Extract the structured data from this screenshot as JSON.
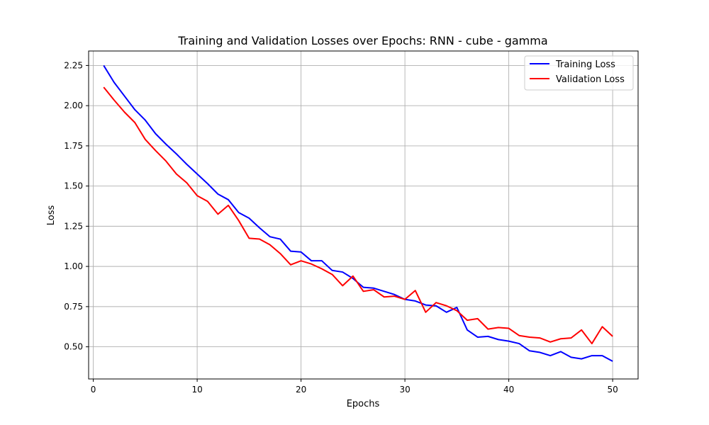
{
  "chart_data": {
    "type": "line",
    "title": "Training and Validation Losses over Epochs: RNN - cube - gamma",
    "xlabel": "Epochs",
    "ylabel": "Loss",
    "xlim": [
      -0.45,
      52.45
    ],
    "ylim": [
      0.3,
      2.34
    ],
    "xticks": [
      0,
      10,
      20,
      30,
      40,
      50
    ],
    "xtick_labels": [
      "0",
      "10",
      "20",
      "30",
      "40",
      "50"
    ],
    "yticks": [
      0.5,
      0.75,
      1.0,
      1.25,
      1.5,
      1.75,
      2.0,
      2.25
    ],
    "ytick_labels": [
      "0.50",
      "0.75",
      "1.00",
      "1.25",
      "1.50",
      "1.75",
      "2.00",
      "2.25"
    ],
    "grid": true,
    "legend_position": "top-right",
    "x": [
      1,
      2,
      3,
      4,
      5,
      6,
      7,
      8,
      9,
      10,
      11,
      12,
      13,
      14,
      15,
      16,
      17,
      18,
      19,
      20,
      21,
      22,
      23,
      24,
      25,
      26,
      27,
      28,
      29,
      30,
      31,
      32,
      33,
      34,
      35,
      36,
      37,
      38,
      39,
      40,
      41,
      42,
      43,
      44,
      45,
      46,
      47,
      48,
      49,
      50
    ],
    "series": [
      {
        "name": "Training Loss",
        "color": "#0000ff",
        "values": [
          2.25,
          2.145,
          2.06,
          1.975,
          1.91,
          1.825,
          1.76,
          1.7,
          1.635,
          1.575,
          1.515,
          1.45,
          1.415,
          1.335,
          1.3,
          1.24,
          1.185,
          1.17,
          1.095,
          1.09,
          1.035,
          1.035,
          0.975,
          0.965,
          0.925,
          0.87,
          0.865,
          0.845,
          0.825,
          0.795,
          0.785,
          0.76,
          0.755,
          0.715,
          0.745,
          0.605,
          0.56,
          0.565,
          0.545,
          0.535,
          0.52,
          0.475,
          0.465,
          0.445,
          0.47,
          0.435,
          0.425,
          0.445,
          0.445,
          0.41
        ]
      },
      {
        "name": "Validation Loss",
        "color": "#ff0000",
        "values": [
          2.115,
          2.035,
          1.96,
          1.895,
          1.79,
          1.72,
          1.655,
          1.575,
          1.52,
          1.44,
          1.405,
          1.325,
          1.38,
          1.285,
          1.175,
          1.17,
          1.135,
          1.08,
          1.01,
          1.035,
          1.015,
          0.985,
          0.95,
          0.88,
          0.94,
          0.845,
          0.855,
          0.81,
          0.815,
          0.795,
          0.85,
          0.715,
          0.775,
          0.755,
          0.725,
          0.665,
          0.675,
          0.61,
          0.62,
          0.615,
          0.57,
          0.56,
          0.555,
          0.53,
          0.55,
          0.555,
          0.605,
          0.52,
          0.625,
          0.565
        ]
      }
    ]
  }
}
